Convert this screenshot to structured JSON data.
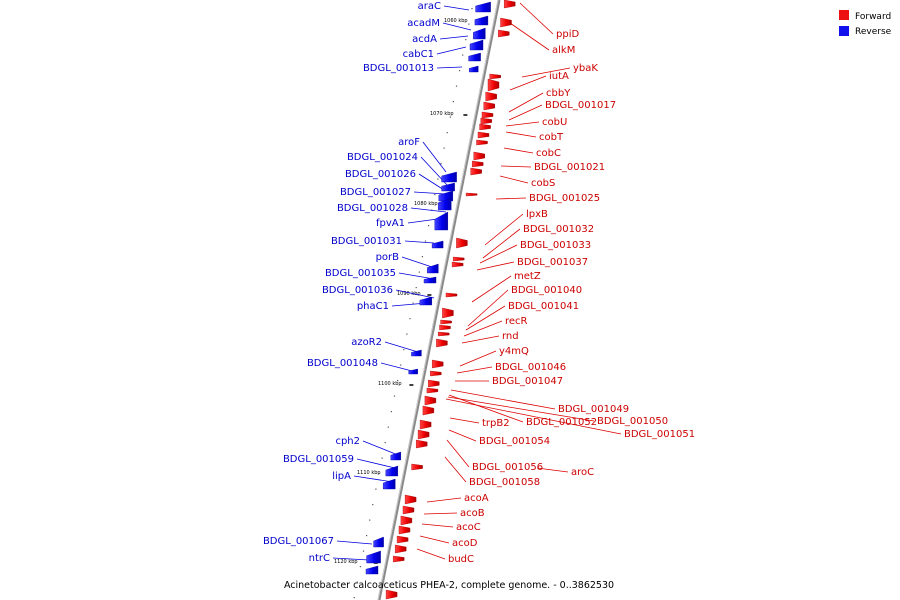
{
  "legend": [
    {
      "label": "Forward",
      "color": "#ee1111"
    },
    {
      "label": "Reverse",
      "color": "#1111ee"
    }
  ],
  "caption": "Acinetobacter calcoaceticus PHEA-2, complete genome. - 0..3862530",
  "colors": {
    "forward": "#ee1111",
    "reverse": "#1111ee",
    "backbone": "#9a9a9a",
    "forward_label": "#cc0000",
    "reverse_label": "#0000cc"
  },
  "ticks": [
    "1060 kbp",
    "1070 kbp",
    "1080 kbp",
    "1090 kbp",
    "1100 kbp",
    "1110 kbp",
    "1120 kbp"
  ],
  "forward_genes": [
    "ppiD",
    "alkM",
    "ybaK",
    "iutA",
    "cbbY",
    "BDGL_001017",
    "cobU",
    "cobT",
    "cobC",
    "BDGL_001021",
    "cobS",
    "BDGL_001025",
    "lpxB",
    "BDGL_001032",
    "BDGL_001033",
    "BDGL_001037",
    "metZ",
    "BDGL_001040",
    "BDGL_001041",
    "recR",
    "rnd",
    "y4mQ",
    "BDGL_001046",
    "BDGL_001047",
    "BDGL_001049",
    "BDGL_001052",
    "BDGL_001050",
    "BDGL_001051",
    "trpB2",
    "BDGL_001054",
    "BDGL_001056",
    "aroC",
    "BDGL_001058",
    "acoA",
    "acoB",
    "acoC",
    "acoD",
    "budC"
  ],
  "reverse_genes": [
    "araC",
    "acadM",
    "acdA",
    "cabC1",
    "BDGL_001013",
    "aroF",
    "BDGL_001024",
    "BDGL_001026",
    "BDGL_001027",
    "BDGL_001028",
    "fpvA1",
    "BDGL_001031",
    "porB",
    "BDGL_001035",
    "BDGL_001036",
    "phaC1",
    "azoR2",
    "BDGL_001048",
    "cph2",
    "BDGL_001059",
    "lipA",
    "BDGL_001067",
    "ntrC"
  ]
}
